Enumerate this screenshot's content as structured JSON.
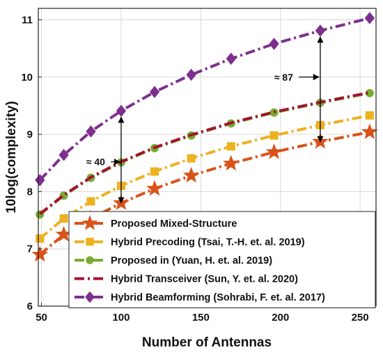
{
  "chart_data": {
    "type": "line",
    "xlabel": "Number of Antennas",
    "ylabel": "10log(complexity)",
    "xlim": [
      48,
      260
    ],
    "ylim": [
      6,
      11.2
    ],
    "xticks": [
      50,
      100,
      150,
      200,
      250
    ],
    "yticks": [
      6,
      7,
      8,
      9,
      10,
      11
    ],
    "grid": true,
    "legend_position": "bottom-right",
    "x": [
      49,
      64,
      81,
      100,
      121,
      144,
      169,
      196,
      225,
      256
    ],
    "series": [
      {
        "name": "Proposed Mixed-Structure",
        "color": "#D95319",
        "marker": "star",
        "line_style": "dash-dot",
        "values": [
          6.9,
          7.25,
          7.53,
          7.8,
          8.05,
          8.28,
          8.49,
          8.69,
          8.87,
          9.04
        ]
      },
      {
        "name": "Hybrid Precoding (Tsai, T.-H. et. al. 2019)",
        "color": "#EDB120",
        "marker": "square",
        "line_style": "dash-dot",
        "values": [
          7.18,
          7.53,
          7.83,
          8.1,
          8.35,
          8.58,
          8.79,
          8.98,
          9.16,
          9.33
        ]
      },
      {
        "name": "Proposed in (Yuan, H. et. al. 2019)",
        "color": "#77AC30",
        "marker": "circle",
        "line_style": "dash-dot",
        "values": [
          7.6,
          7.93,
          8.24,
          8.51,
          8.76,
          8.98,
          9.19,
          9.38,
          9.55,
          9.72
        ]
      },
      {
        "name": "Hybrid Transceiver (Sun, Y. et. al. 2020)",
        "color": "#A2142F",
        "marker": "none",
        "line_style": "dash-dot",
        "values": [
          7.61,
          7.94,
          8.25,
          8.52,
          8.77,
          8.99,
          9.2,
          9.39,
          9.56,
          9.73
        ]
      },
      {
        "name": "Hybrid Beamforming (Sohrabi, F. et. al. 2017)",
        "color": "#7E2F8E",
        "marker": "diamond",
        "line_style": "dash-dot",
        "values": [
          8.2,
          8.64,
          9.05,
          9.41,
          9.74,
          10.04,
          10.32,
          10.58,
          10.81,
          11.03
        ]
      }
    ],
    "annotations": [
      {
        "text": "≈ 40",
        "x": 100,
        "y_from": 7.8,
        "y_to": 9.3,
        "label_at": [
          84,
          8.52
        ]
      },
      {
        "text": "≈ 87",
        "x": 225,
        "y_from": 8.87,
        "y_to": 10.7,
        "label_at": [
          202,
          10.0
        ]
      }
    ]
  }
}
